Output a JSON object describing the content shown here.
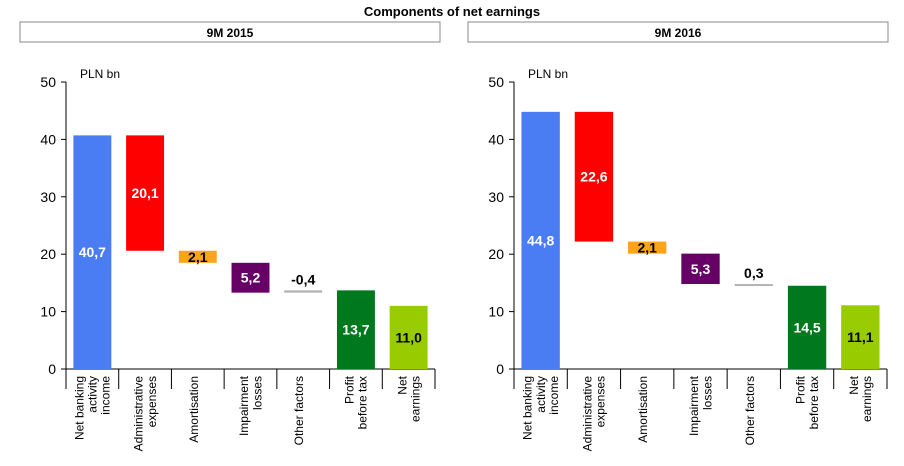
{
  "title": "Components of net earnings",
  "chart_data": [
    {
      "type": "waterfall",
      "title": "9M 2015",
      "unit_label": "PLN bn",
      "categories": [
        "Net banking\nactivity\nincome",
        "Administrative\nexpenses",
        "Amortisation",
        "Impairment\nlosses",
        "Other factors",
        "Profit\nbefore tax",
        "Net\nearnings"
      ],
      "values": [
        40.7,
        20.1,
        2.1,
        5.2,
        -0.4,
        13.7,
        11.0
      ],
      "value_labels": [
        "40,7",
        "20,1",
        "2,1",
        "5,2",
        "-0,4",
        "13,7",
        "11,0"
      ],
      "measure": [
        "total",
        "decrease",
        "decrease",
        "decrease",
        "decrease",
        "total",
        "total"
      ],
      "colors": [
        "#4a7cf4",
        "#ff0000",
        "#ffa31a",
        "#660066",
        "#b3b3b3",
        "#00781e",
        "#99cc00"
      ],
      "label_colors": [
        "#ffffff",
        "#ffffff",
        "#000000",
        "#ffffff",
        "#000000",
        "#ffffff",
        "#000000"
      ],
      "ylim": [
        0,
        50
      ],
      "yticks": [
        0,
        10,
        20,
        30,
        40,
        50
      ]
    },
    {
      "type": "waterfall",
      "title": "9M 2016",
      "unit_label": "PLN bn",
      "categories": [
        "Net banking\nactivity\nincome",
        "Administrative\nexpenses",
        "Amortisation",
        "Impairment\nlosses",
        "Other factors",
        "Profit\nbefore tax",
        "Net\nearnings"
      ],
      "values": [
        44.8,
        22.6,
        2.1,
        5.3,
        0.3,
        14.5,
        11.1
      ],
      "value_labels": [
        "44,8",
        "22,6",
        "2,1",
        "5,3",
        "0,3",
        "14,5",
        "11,1"
      ],
      "measure": [
        "total",
        "decrease",
        "decrease",
        "decrease",
        "decrease",
        "total",
        "total"
      ],
      "colors": [
        "#4a7cf4",
        "#ff0000",
        "#ffa31a",
        "#660066",
        "#b3b3b3",
        "#00781e",
        "#99cc00"
      ],
      "label_colors": [
        "#ffffff",
        "#ffffff",
        "#000000",
        "#ffffff",
        "#000000",
        "#ffffff",
        "#000000"
      ],
      "ylim": [
        0,
        50
      ],
      "yticks": [
        0,
        10,
        20,
        30,
        40,
        50
      ]
    }
  ]
}
